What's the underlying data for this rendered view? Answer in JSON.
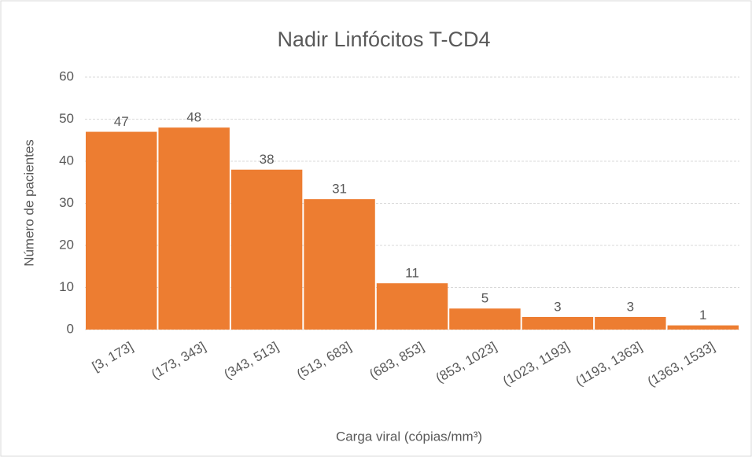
{
  "chart_data": {
    "type": "bar",
    "title": "Nadir Linfócitos T-CD4",
    "x_label": "Carga viral (cópias/mm³)",
    "y_label": "Número de pacientes",
    "categories": [
      "[3, 173]",
      "(173, 343]",
      "(343, 513]",
      "(513, 683]",
      "(683, 853]",
      "(853, 1023]",
      "(1023, 1193]",
      "(1193, 1363]",
      "(1363, 1533]"
    ],
    "values": [
      47,
      48,
      38,
      31,
      11,
      5,
      3,
      3,
      1
    ],
    "color": "#ed7d31",
    "ylim": [
      0,
      60
    ],
    "yticks": [
      0,
      10,
      20,
      30,
      40,
      50,
      60
    ],
    "grid": true
  }
}
